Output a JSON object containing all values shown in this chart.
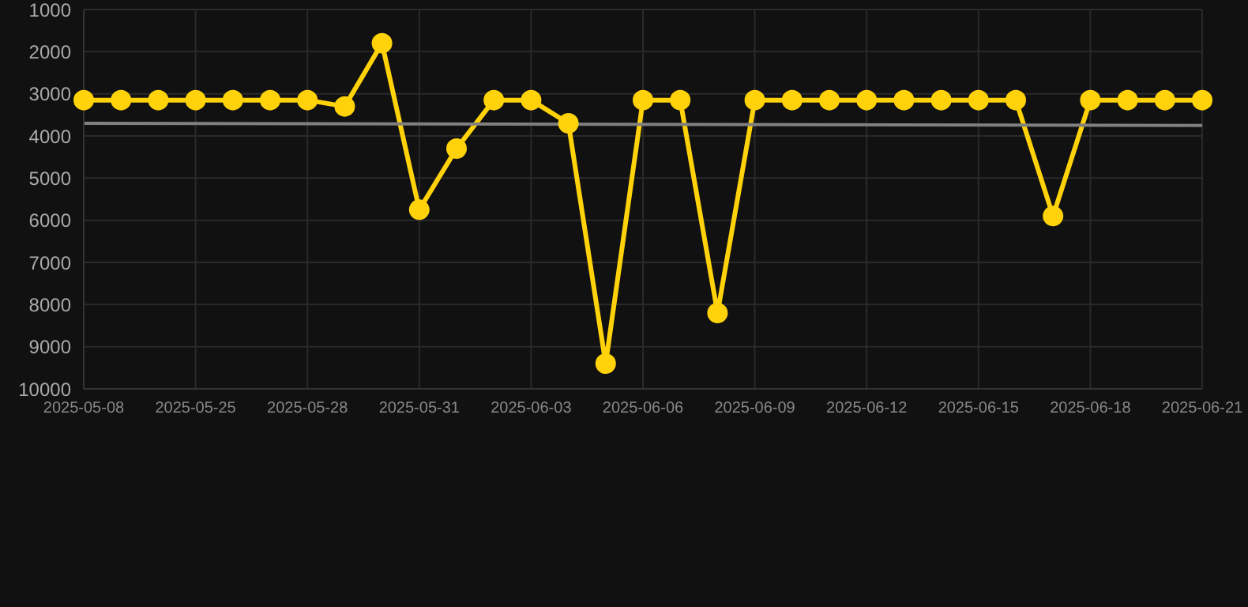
{
  "chart_data": {
    "type": "line",
    "categories": [
      "2025-05-08",
      null,
      null,
      "2025-05-25",
      null,
      null,
      "2025-05-28",
      null,
      null,
      "2025-05-31",
      null,
      null,
      "2025-06-03",
      null,
      null,
      "2025-06-06",
      null,
      null,
      "2025-06-09",
      null,
      null,
      "2025-06-12",
      null,
      null,
      "2025-06-15",
      null,
      null,
      "2025-06-18",
      null,
      null,
      "2025-06-21"
    ],
    "series": [
      {
        "color": "#ffd20a",
        "marker": "circle",
        "values": [
          3150,
          3150,
          3150,
          3150,
          3150,
          3150,
          3150,
          3300,
          1800,
          5750,
          4300,
          3150,
          3150,
          3700,
          9400,
          3150,
          3150,
          8200,
          3150,
          3150,
          3150,
          3150,
          3150,
          3150,
          3150,
          3150,
          5900,
          3150,
          3150,
          3150,
          3150
        ]
      },
      {
        "color": "#808080",
        "marker": "none",
        "values": [
          3700,
          null,
          null,
          null,
          null,
          null,
          null,
          null,
          null,
          null,
          null,
          null,
          null,
          null,
          null,
          null,
          null,
          null,
          null,
          null,
          null,
          null,
          null,
          null,
          null,
          null,
          null,
          null,
          null,
          null,
          3750
        ]
      }
    ],
    "ylim": [
      10000,
      1000
    ],
    "yticks": [
      1000,
      2000,
      3000,
      4000,
      5000,
      6000,
      7000,
      8000,
      9000,
      10000
    ],
    "grid": true
  }
}
